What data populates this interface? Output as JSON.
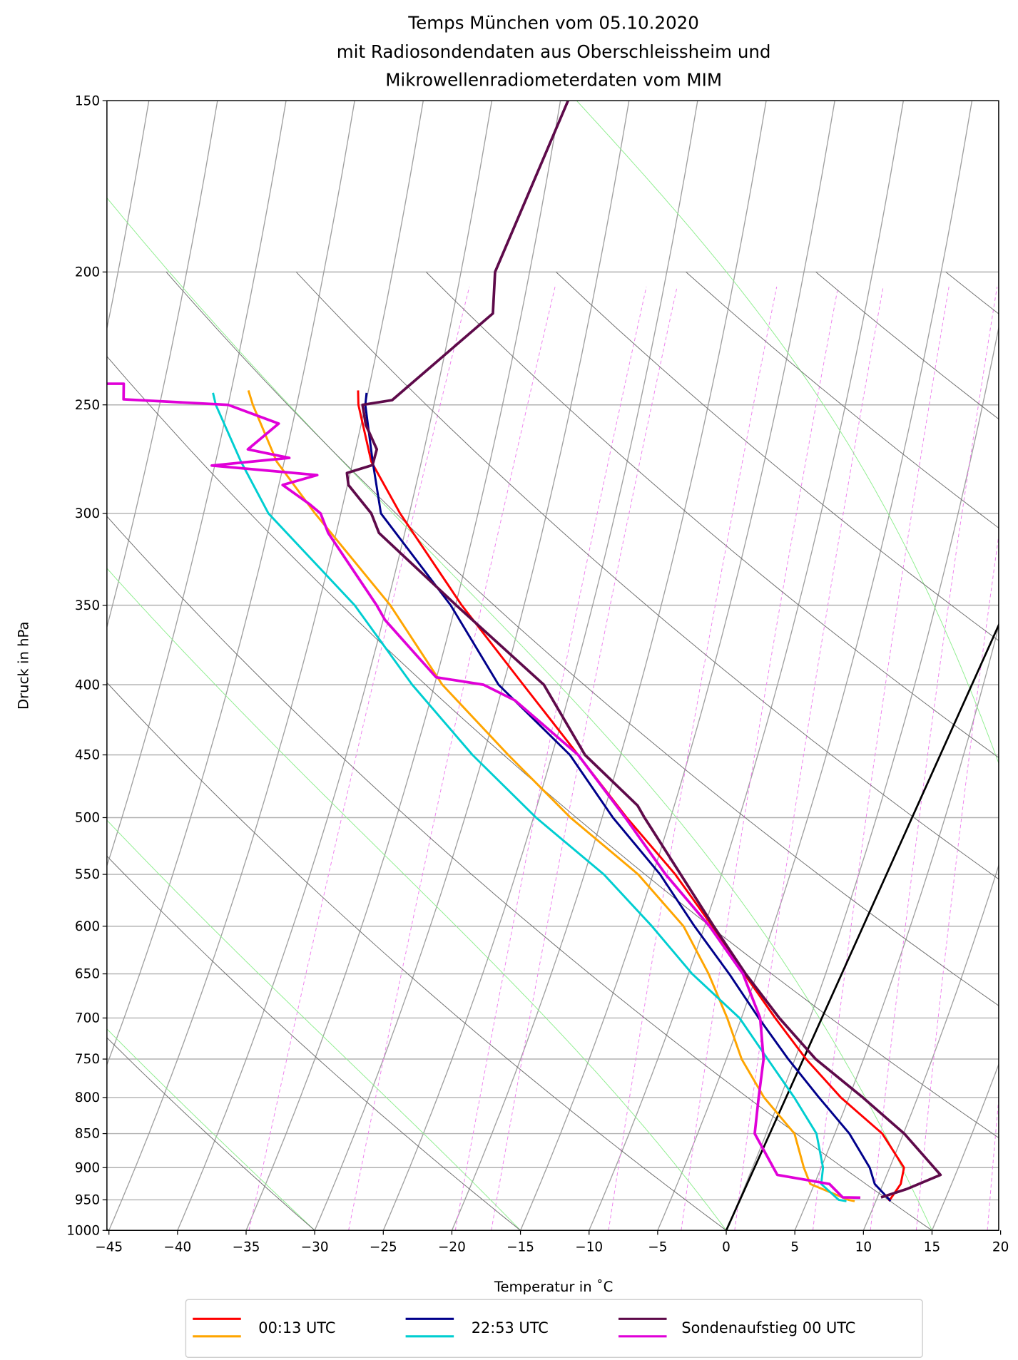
{
  "chart_data": {
    "type": "line",
    "subtype": "skew-T log-p diagram",
    "title": [
      "Temps München vom 05.10.2020",
      "mit Radiosondendaten aus Oberschleissheim und",
      "Mikrowellenradiometerdaten vom MIM"
    ],
    "xlabel": "Temperatur in $^\\circ$C",
    "xlabel_display": "Temperatur in ˚C",
    "ylabel": "Druck in hPa",
    "xlim": [
      -45,
      20
    ],
    "ylim": [
      1000,
      150
    ],
    "yscale": "log",
    "grid": true,
    "xticks": [
      "−45",
      "−40",
      "−35",
      "−30",
      "−25",
      "−20",
      "−15",
      "−10",
      "−5",
      "0",
      "5",
      "10",
      "15",
      "20"
    ],
    "xtick_values": [
      -45,
      -40,
      -35,
      -30,
      -25,
      -20,
      -15,
      -10,
      -5,
      0,
      5,
      10,
      15,
      20
    ],
    "yticks": [
      "150",
      "200",
      "250",
      "300",
      "350",
      "400",
      "450",
      "500",
      "550",
      "600",
      "650",
      "700",
      "750",
      "800",
      "850",
      "900",
      "950",
      "1000"
    ],
    "ytick_values": [
      150,
      200,
      250,
      300,
      350,
      400,
      450,
      500,
      550,
      600,
      650,
      700,
      750,
      800,
      850,
      900,
      950,
      1000
    ],
    "legend_position": "bottom-center",
    "legend": [
      {
        "label": "00:13 UTC",
        "colors": [
          "#ff0000",
          "#ffa500"
        ]
      },
      {
        "label": "22:53 UTC",
        "colors": [
          "#00008b",
          "#00ced1"
        ]
      },
      {
        "label": "Sondenaufstieg 00 UTC",
        "colors": [
          "#5e0a4a",
          "#e000d8"
        ]
      }
    ],
    "series": [
      {
        "legend": "00:13 UTC",
        "quantity": "temperature",
        "color": "#ff0000",
        "p": [
          952,
          925,
          900,
          850,
          800,
          750,
          700,
          650,
          600,
          550,
          500,
          450,
          400,
          350,
          300,
          275,
          250,
          244
        ],
        "T": [
          10.9,
          11.2,
          10.9,
          8.2,
          4.0,
          0.2,
          -3.4,
          -7.1,
          -11.0,
          -15.4,
          -20.8,
          -26.4,
          -32.7,
          -39.8,
          -47.3,
          -51.1,
          -53.9,
          -54.4
        ]
      },
      {
        "legend": "00:13 UTC",
        "quantity": "dewpoint",
        "color": "#ffa500",
        "p": [
          952,
          950,
          925,
          900,
          850,
          800,
          750,
          700,
          650,
          600,
          550,
          500,
          450,
          400,
          350,
          300,
          275,
          250,
          244
        ],
        "T": [
          8.4,
          7.9,
          4.6,
          3.6,
          1.8,
          -1.6,
          -4.5,
          -6.9,
          -9.7,
          -13.1,
          -18.1,
          -24.9,
          -31.5,
          -38.6,
          -45.0,
          -53.5,
          -58.0,
          -61.6,
          -62.4
        ]
      },
      {
        "legend": "22:53 UTC",
        "quantity": "temperature",
        "color": "#00008b",
        "p": [
          952,
          950,
          925,
          900,
          850,
          800,
          750,
          700,
          650,
          600,
          550,
          500,
          450,
          400,
          350,
          300,
          275,
          250,
          245
        ],
        "T": [
          11.0,
          10.9,
          9.3,
          8.4,
          5.8,
          2.4,
          -1.1,
          -4.6,
          -8.2,
          -12.3,
          -16.5,
          -21.8,
          -27.0,
          -34.5,
          -40.6,
          -48.7,
          -51.0,
          -53.4,
          -53.7
        ]
      },
      {
        "legend": "22:53 UTC",
        "quantity": "dewpoint",
        "color": "#00ced1",
        "p": [
          952,
          950,
          925,
          900,
          850,
          800,
          750,
          700,
          650,
          600,
          550,
          500,
          450,
          400,
          350,
          300,
          275,
          250,
          245
        ],
        "T": [
          7.8,
          7.2,
          5.4,
          5.0,
          3.4,
          0.6,
          -2.6,
          -6.0,
          -10.9,
          -15.4,
          -20.6,
          -27.4,
          -34.1,
          -40.8,
          -47.6,
          -56.9,
          -60.6,
          -64.3,
          -64.9
        ]
      },
      {
        "legend": "Sondenaufstieg 00 UTC",
        "quantity": "temperature",
        "color": "#5e0a4a",
        "p": [
          946,
          933,
          911,
          850,
          800,
          750,
          700,
          650,
          600,
          550,
          500,
          490,
          450,
          400,
          350,
          310,
          300,
          286,
          280.3,
          276.6,
          269.4,
          258.6,
          250,
          248,
          214.4,
          200,
          150
        ],
        "T": [
          10.2,
          11.8,
          13.8,
          9.8,
          5.6,
          0.9,
          -3.1,
          -7.0,
          -10.9,
          -15.0,
          -19.5,
          -20.4,
          -25.9,
          -31.2,
          -40.2,
          -48.2,
          -49.4,
          -52.0,
          -52.5,
          -50.9,
          -51.1,
          -52.7,
          -53.6,
          -51.6,
          -47.1,
          -48.3,
          -48.6
        ]
      },
      {
        "legend": "Sondenaufstieg 00 UTC",
        "quantity": "dewpoint",
        "color": "#e000d8",
        "p": [
          946.5,
          946,
          925,
          911,
          850,
          800,
          750,
          700,
          650,
          600,
          550,
          500,
          450,
          410.6,
          400,
          395,
          358.8,
          350,
          310,
          300,
          295.4,
          286,
          281.3,
          276.8,
          273.3,
          269.4,
          258,
          250,
          247.7,
          241.3,
          241.3
        ],
        "T": [
          8.7,
          7.4,
          6.0,
          1.9,
          -1.1,
          -2.0,
          -2.9,
          -4.5,
          -7.2,
          -11.2,
          -16.1,
          -20.9,
          -26.4,
          -32.8,
          -35.6,
          -39.3,
          -44.9,
          -46.0,
          -51.9,
          -53.1,
          -54.2,
          -56.8,
          -54.6,
          -62.6,
          -57.2,
          -60.5,
          -59.1,
          -63.4,
          -71.2,
          -71.7,
          -72.9
        ]
      }
    ],
    "reference_lines": {
      "zero_isotherm": {
        "T": 0,
        "color": "#000000"
      },
      "isotherms": {
        "color": "#a0a0a0",
        "step": 5
      },
      "dry_adiabats_T1000": [
        -45,
        -30,
        -15,
        0,
        15,
        30,
        45,
        60,
        75,
        90,
        105,
        120,
        135,
        150
      ],
      "dry_adiabat_color": "#707070",
      "moist_adiabats_T1000": [
        -75,
        -60,
        -45,
        -30,
        -15,
        0,
        15,
        30,
        45
      ],
      "moist_adiabat_color": "#90ee90",
      "mixing_ratios_g_per_kg": [
        0.2,
        0.4,
        0.8,
        1,
        2,
        3,
        4,
        6,
        8,
        10,
        14,
        20
      ],
      "mixing_ratio_color": "#ee82ee"
    }
  }
}
